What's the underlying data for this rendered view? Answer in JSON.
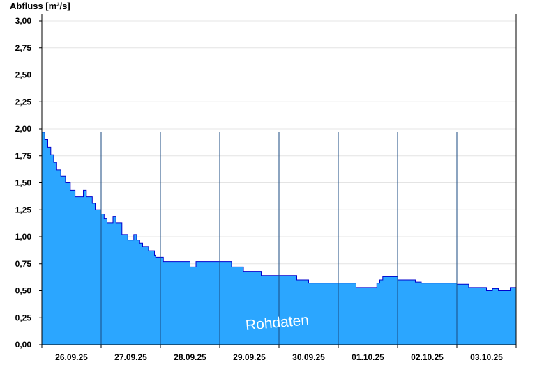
{
  "chart_data": {
    "type": "area",
    "title": "",
    "ylabel": "Abfluss [m³/s]",
    "xlabel": "",
    "ylim": [
      0,
      3
    ],
    "yticks": [
      0,
      0.25,
      0.5,
      0.75,
      1.0,
      1.25,
      1.5,
      1.75,
      2.0,
      2.25,
      2.5,
      2.75,
      3.0
    ],
    "ytick_labels": [
      "0,00",
      "0,25",
      "0,50",
      "0,75",
      "1,00",
      "1,25",
      "1,50",
      "1,75",
      "2,00",
      "2,25",
      "2,50",
      "2,75",
      "3,00"
    ],
    "x_unit": "days",
    "xlim": [
      0,
      8
    ],
    "xtick_labels": [
      "26.09.25",
      "27.09.25",
      "28.09.25",
      "29.09.25",
      "30.09.25",
      "01.10.25",
      "02.10.25",
      "03.10.25"
    ],
    "watermark": "Rohdaten",
    "grid": true,
    "fill_color": "#2ba6ff",
    "line_color": "#0000cc",
    "series": [
      {
        "x": [
          0.0,
          0.05,
          0.1,
          0.15,
          0.2,
          0.25,
          0.32,
          0.4,
          0.48,
          0.56,
          0.62,
          0.7,
          0.75,
          0.85,
          0.9,
          0.95,
          0.97,
          1.0,
          1.05,
          1.1,
          1.15,
          1.2,
          1.25,
          1.35,
          1.45,
          1.52,
          1.55,
          1.6,
          1.65,
          1.7,
          1.75,
          1.8,
          1.83,
          1.9,
          1.92,
          1.98,
          2.05,
          2.1,
          2.2,
          2.3,
          2.4,
          2.5,
          2.6,
          2.65,
          2.7,
          2.8,
          2.9,
          3.0,
          3.2,
          3.4,
          3.5,
          3.7,
          4.0,
          4.3,
          4.5,
          4.8,
          5.0,
          5.3,
          5.5,
          5.6,
          5.65,
          5.7,
          5.75,
          5.8,
          5.9,
          6.0,
          6.1,
          6.2,
          6.3,
          6.4,
          6.5,
          6.6,
          6.7,
          6.8,
          6.9,
          7.0,
          7.1,
          7.2,
          7.3,
          7.4,
          7.5,
          7.6,
          7.7,
          7.8,
          7.9,
          8.0
        ],
        "y": [
          1.97,
          1.9,
          1.83,
          1.76,
          1.69,
          1.62,
          1.56,
          1.5,
          1.43,
          1.37,
          1.37,
          1.43,
          1.37,
          1.31,
          1.25,
          1.25,
          1.25,
          1.21,
          1.17,
          1.13,
          1.13,
          1.19,
          1.13,
          1.02,
          0.97,
          0.97,
          1.02,
          0.97,
          0.94,
          0.91,
          0.91,
          0.87,
          0.87,
          0.83,
          0.81,
          0.81,
          0.77,
          0.77,
          0.77,
          0.77,
          0.77,
          0.72,
          0.77,
          0.77,
          0.77,
          0.77,
          0.77,
          0.77,
          0.72,
          0.68,
          0.68,
          0.64,
          0.64,
          0.6,
          0.57,
          0.57,
          0.57,
          0.53,
          0.53,
          0.53,
          0.57,
          0.6,
          0.63,
          0.63,
          0.63,
          0.6,
          0.6,
          0.6,
          0.58,
          0.57,
          0.57,
          0.57,
          0.57,
          0.57,
          0.57,
          0.56,
          0.56,
          0.53,
          0.53,
          0.53,
          0.5,
          0.52,
          0.5,
          0.5,
          0.53,
          0.53
        ]
      }
    ]
  }
}
